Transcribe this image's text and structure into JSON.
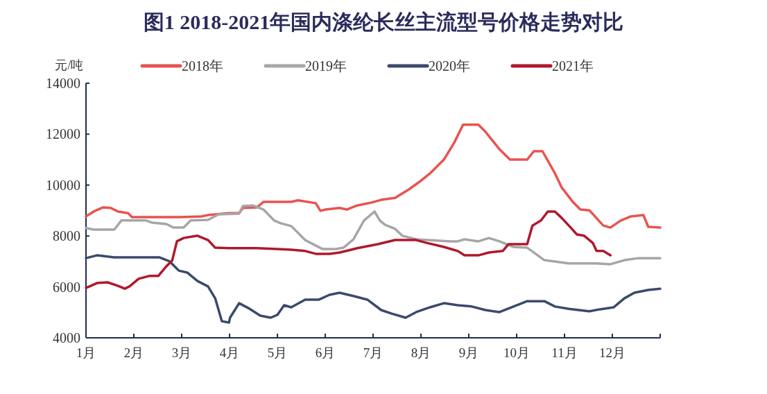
{
  "chart_data": {
    "type": "line",
    "title": "图1  2018-2021年国内涤纶长丝主流型号价格走势对比",
    "ylabel": "元/吨",
    "xlim": [
      1,
      13
    ],
    "ylim": [
      4000,
      14000
    ],
    "xticks": [
      {
        "value": 1,
        "label": "1月"
      },
      {
        "value": 2,
        "label": "2月"
      },
      {
        "value": 3,
        "label": "3月"
      },
      {
        "value": 4,
        "label": "4月"
      },
      {
        "value": 5,
        "label": "5月"
      },
      {
        "value": 6,
        "label": "6月"
      },
      {
        "value": 7,
        "label": "7月"
      },
      {
        "value": 8,
        "label": "8月"
      },
      {
        "value": 9,
        "label": "9月"
      },
      {
        "value": 10,
        "label": "10月"
      },
      {
        "value": 11,
        "label": "11月"
      },
      {
        "value": 12,
        "label": "12月"
      },
      {
        "value": 13,
        "label": null
      }
    ],
    "yticks": [
      4000,
      6000,
      8000,
      10000,
      12000,
      14000
    ],
    "grid": false,
    "legend": "top",
    "marker": "none",
    "line_style": "solid",
    "series": [
      {
        "name": "2018年",
        "color": "#e8534f",
        "x": [
          1,
          1.16,
          1.35,
          1.52,
          1.67,
          1.88,
          1.96,
          2.54,
          2.97,
          3.41,
          3.55,
          3.99,
          4.2,
          4.28,
          4.57,
          4.71,
          5.29,
          5.43,
          5.8,
          5.9,
          6.01,
          6.3,
          6.45,
          6.67,
          6.96,
          7.17,
          7.46,
          7.75,
          7.97,
          8.19,
          8.48,
          8.7,
          8.88,
          9.2,
          9.35,
          9.64,
          9.86,
          10.22,
          10.36,
          10.54,
          10.8,
          10.94,
          11.16,
          11.33,
          11.52,
          11.81,
          11.96,
          12.17,
          12.39,
          12.65,
          12.75,
          13
        ],
        "values": [
          8770,
          8960,
          9120,
          9100,
          8960,
          8900,
          8740,
          8740,
          8740,
          8770,
          8820,
          8900,
          8900,
          9100,
          9120,
          9340,
          9340,
          9400,
          9290,
          8990,
          9040,
          9100,
          9040,
          9200,
          9310,
          9420,
          9500,
          9830,
          10130,
          10460,
          11000,
          11680,
          12370,
          12370,
          12090,
          11410,
          11000,
          11000,
          11330,
          11330,
          10460,
          9910,
          9370,
          9040,
          9010,
          8410,
          8330,
          8600,
          8770,
          8820,
          8360,
          8330
        ]
      },
      {
        "name": "2019年",
        "color": "#a6a6a6",
        "x": [
          1,
          1.16,
          1.59,
          1.74,
          2.25,
          2.39,
          2.68,
          2.83,
          3.04,
          3.19,
          3.55,
          3.77,
          4.2,
          4.28,
          4.49,
          4.71,
          4.93,
          5.07,
          5.29,
          5.58,
          5.94,
          6.23,
          6.38,
          6.59,
          6.81,
          7.03,
          7.14,
          7.25,
          7.46,
          7.61,
          7.9,
          8.62,
          8.77,
          8.91,
          9.2,
          9.42,
          9.64,
          9.93,
          10.22,
          10.58,
          10.8,
          11.09,
          11.67,
          11.96,
          12.25,
          12.54,
          13
        ],
        "values": [
          8310,
          8250,
          8250,
          8610,
          8610,
          8520,
          8470,
          8330,
          8330,
          8610,
          8630,
          8850,
          8880,
          9180,
          9200,
          9040,
          8610,
          8500,
          8390,
          7840,
          7490,
          7490,
          7540,
          7870,
          8610,
          8960,
          8610,
          8440,
          8280,
          8010,
          7870,
          7790,
          7790,
          7870,
          7790,
          7920,
          7790,
          7570,
          7540,
          7050,
          7000,
          6920,
          6920,
          6890,
          7050,
          7130,
          7130
        ]
      },
      {
        "name": "2020年",
        "color": "#3b4a6b",
        "x": [
          1,
          1.23,
          1.59,
          2.54,
          2.75,
          2.94,
          3.12,
          3.33,
          3.55,
          3.7,
          3.84,
          3.99,
          4.01,
          4.2,
          4.42,
          4.64,
          4.86,
          5,
          5.14,
          5.29,
          5.58,
          5.87,
          6.09,
          6.3,
          6.59,
          6.88,
          7.17,
          7.39,
          7.68,
          7.9,
          8.19,
          8.48,
          8.77,
          9.06,
          9.35,
          9.64,
          10,
          10.22,
          10.58,
          10.8,
          11.09,
          11.3,
          11.52,
          11.74,
          12.03,
          12.25,
          12.46,
          12.75,
          13
        ],
        "values": [
          7130,
          7240,
          7160,
          7160,
          7000,
          6640,
          6560,
          6230,
          6020,
          5550,
          4650,
          4600,
          4790,
          5360,
          5140,
          4870,
          4790,
          4900,
          5280,
          5200,
          5500,
          5500,
          5690,
          5770,
          5640,
          5500,
          5090,
          4950,
          4790,
          5010,
          5200,
          5360,
          5280,
          5230,
          5090,
          5010,
          5280,
          5440,
          5440,
          5230,
          5140,
          5090,
          5040,
          5120,
          5200,
          5550,
          5770,
          5880,
          5930
        ]
      },
      {
        "name": "2021年",
        "color": "#b0182b",
        "x": [
          1,
          1.23,
          1.45,
          1.67,
          1.81,
          1.91,
          2.1,
          2.32,
          2.51,
          2.68,
          2.8,
          2.9,
          3.04,
          3.33,
          3.55,
          3.7,
          3.99,
          4.28,
          4.57,
          5,
          5.29,
          5.58,
          5.8,
          6.09,
          6.3,
          6.67,
          7.1,
          7.46,
          7.75,
          7.9,
          8.12,
          8.48,
          8.77,
          8.91,
          9.2,
          9.42,
          9.71,
          9.83,
          10.22,
          10.33,
          10.51,
          10.65,
          10.8,
          10.94,
          11.09,
          11.26,
          11.41,
          11.59,
          11.67,
          11.81,
          11.96
        ],
        "values": [
          5960,
          6150,
          6180,
          6040,
          5930,
          6020,
          6320,
          6430,
          6430,
          6810,
          7030,
          7790,
          7920,
          8010,
          7840,
          7540,
          7520,
          7520,
          7520,
          7490,
          7460,
          7410,
          7300,
          7300,
          7350,
          7520,
          7680,
          7840,
          7840,
          7840,
          7730,
          7570,
          7410,
          7240,
          7240,
          7350,
          7410,
          7680,
          7680,
          8410,
          8610,
          8960,
          8960,
          8710,
          8410,
          8060,
          8010,
          7730,
          7410,
          7410,
          7240
        ]
      }
    ]
  }
}
